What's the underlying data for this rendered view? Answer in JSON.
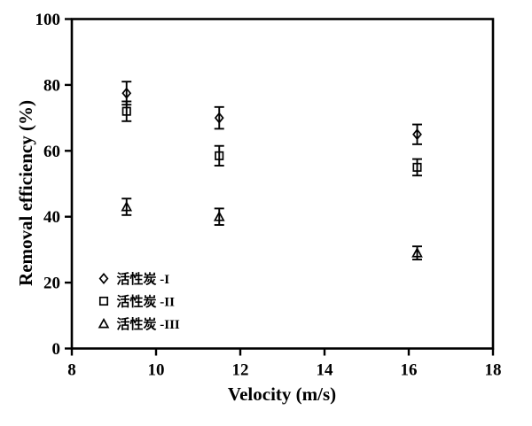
{
  "figure": {
    "background": "#ffffff",
    "foreground": "#000000"
  },
  "chart_data": {
    "type": "scatter",
    "title": "",
    "xlabel": "Velocity (m/s)",
    "ylabel": "Removal efficiency (%)",
    "xlim": [
      8,
      18
    ],
    "ylim": [
      0,
      100
    ],
    "x_ticks": [
      8,
      10,
      12,
      14,
      16,
      18
    ],
    "y_ticks": [
      0,
      20,
      40,
      60,
      80,
      100
    ],
    "grid": false,
    "legend_position": "inside lower-left",
    "marker_style": "open",
    "error_bars": true,
    "series": [
      {
        "name": "活性炭 -I",
        "marker": "diamond",
        "points": [
          {
            "x": 9.3,
            "y": 77.5,
            "err": 3.5
          },
          {
            "x": 11.5,
            "y": 70,
            "err": 3.3
          },
          {
            "x": 16.2,
            "y": 65,
            "err": 3
          }
        ]
      },
      {
        "name": "活性炭 -II",
        "marker": "square",
        "points": [
          {
            "x": 9.3,
            "y": 72,
            "err": 3
          },
          {
            "x": 11.5,
            "y": 58.5,
            "err": 3
          },
          {
            "x": 16.2,
            "y": 55,
            "err": 2.5
          }
        ]
      },
      {
        "name": "活性炭 -III",
        "marker": "triangle",
        "points": [
          {
            "x": 9.3,
            "y": 43,
            "err": 2.5
          },
          {
            "x": 11.5,
            "y": 40,
            "err": 2.5
          },
          {
            "x": 16.2,
            "y": 29,
            "err": 2
          }
        ]
      }
    ]
  }
}
